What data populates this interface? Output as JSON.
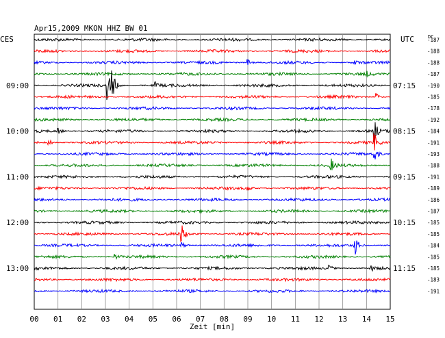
{
  "header": {
    "title": "Apr15,2009   MKON HHZ BW 01",
    "left_zone": "CES",
    "right_zone": "UTC",
    "dc_label": "DC"
  },
  "chart_data": {
    "type": "line",
    "title": "Apr15,2009   MKON HHZ BW 01",
    "xlabel": "Zeit [min]",
    "xlim": [
      0,
      15
    ],
    "x_ticks": [
      "00",
      "01",
      "02",
      "03",
      "04",
      "05",
      "06",
      "07",
      "08",
      "09",
      "10",
      "11",
      "12",
      "13",
      "14",
      "15"
    ],
    "row_colors": [
      "#000000",
      "#ff0000",
      "#0000ff",
      "#008000"
    ],
    "left_time_labels": [
      "09:00",
      "10:00",
      "11:00",
      "12:00",
      "13:00"
    ],
    "right_time_labels": [
      "07:15",
      "08:15",
      "09:15",
      "10:15",
      "11:15"
    ],
    "dc_values": [
      "-187",
      "-188",
      "-188",
      "-187",
      "-190",
      "-185",
      "-178",
      "-192",
      "-184",
      "-191",
      "-193",
      "-188",
      "-191",
      "-189",
      "-186",
      "-187",
      "-185",
      "-185",
      "-184",
      "-185",
      "-185",
      "-183",
      "-191"
    ],
    "events": [
      {
        "row": 2,
        "minute": 9.0,
        "amp": 5
      },
      {
        "row": 2,
        "minute": 13.5,
        "amp": 4
      },
      {
        "row": 3,
        "minute": 14.0,
        "amp": 3
      },
      {
        "row": 4,
        "minute": 3.1,
        "amp": 22
      },
      {
        "row": 4,
        "minute": 3.3,
        "amp": 18
      },
      {
        "row": 4,
        "minute": 5.1,
        "amp": 4
      },
      {
        "row": 5,
        "minute": 14.4,
        "amp": 6
      },
      {
        "row": 8,
        "minute": 1.0,
        "amp": 5
      },
      {
        "row": 8,
        "minute": 14.35,
        "amp": 14
      },
      {
        "row": 9,
        "minute": 0.6,
        "amp": 5
      },
      {
        "row": 9,
        "minute": 14.35,
        "amp": 12
      },
      {
        "row": 10,
        "minute": 14.35,
        "amp": 10
      },
      {
        "row": 11,
        "minute": 12.5,
        "amp": 10
      },
      {
        "row": 13,
        "minute": 9.0,
        "amp": 4
      },
      {
        "row": 17,
        "minute": 6.2,
        "amp": 16
      },
      {
        "row": 18,
        "minute": 13.5,
        "amp": 18
      },
      {
        "row": 18,
        "minute": 6.2,
        "amp": 5
      },
      {
        "row": 19,
        "minute": 3.4,
        "amp": 4
      },
      {
        "row": 20,
        "minute": 12.4,
        "amp": 6
      },
      {
        "row": 20,
        "minute": 14.2,
        "amp": 4
      }
    ],
    "grid": true
  }
}
